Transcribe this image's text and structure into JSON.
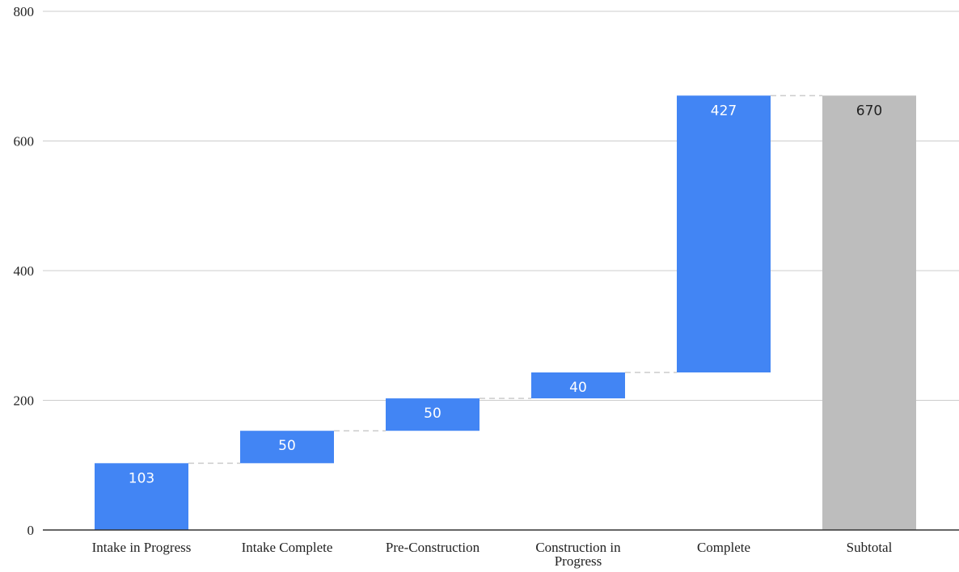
{
  "chart_data": {
    "type": "waterfall",
    "categories": [
      "Intake in Progress",
      "Intake Complete",
      "Pre-Construction",
      "Construction in Progress",
      "Complete",
      "Subtotal"
    ],
    "category_lines": [
      [
        "Intake in Progress"
      ],
      [
        "Intake Complete"
      ],
      [
        "Pre-Construction"
      ],
      [
        "Construction in",
        "Progress"
      ],
      [
        "Complete"
      ],
      [
        "Subtotal"
      ]
    ],
    "values": [
      103,
      50,
      50,
      40,
      427,
      670
    ],
    "value_labels": [
      "103",
      "50",
      "50",
      "40",
      "427",
      "670"
    ],
    "is_total": [
      false,
      false,
      false,
      false,
      false,
      true
    ],
    "ylim": [
      0,
      800
    ],
    "yticks": [
      0,
      200,
      400,
      600,
      800
    ],
    "ytick_labels": [
      "0",
      "200",
      "400",
      "600",
      "800"
    ],
    "grid": true,
    "legend": "none",
    "title": "",
    "xlabel": "",
    "ylabel": "",
    "colors": {
      "increase": "#4285f4",
      "total": "#bdbdbd",
      "increase_label": "#ffffff",
      "total_label": "#222222",
      "grid": "#cccccc",
      "axis": "#333333",
      "connector": "#cccccc"
    }
  }
}
